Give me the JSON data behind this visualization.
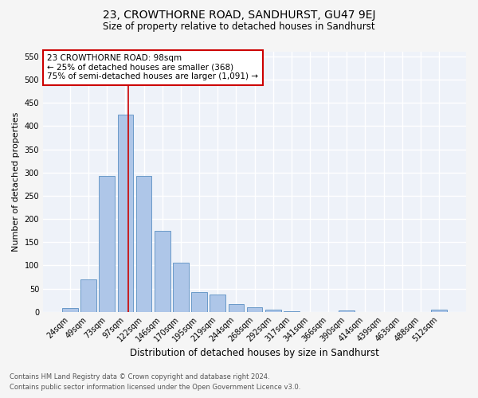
{
  "title": "23, CROWTHORNE ROAD, SANDHURST, GU47 9EJ",
  "subtitle": "Size of property relative to detached houses in Sandhurst",
  "xlabel": "Distribution of detached houses by size in Sandhurst",
  "ylabel": "Number of detached properties",
  "footnote1": "Contains HM Land Registry data © Crown copyright and database right 2024.",
  "footnote2": "Contains public sector information licensed under the Open Government Licence v3.0.",
  "bin_labels": [
    "24sqm",
    "49sqm",
    "73sqm",
    "97sqm",
    "122sqm",
    "146sqm",
    "170sqm",
    "195sqm",
    "219sqm",
    "244sqm",
    "268sqm",
    "292sqm",
    "317sqm",
    "341sqm",
    "366sqm",
    "390sqm",
    "414sqm",
    "439sqm",
    "463sqm",
    "488sqm",
    "512sqm"
  ],
  "bar_values": [
    8,
    70,
    293,
    425,
    293,
    174,
    105,
    43,
    38,
    17,
    10,
    5,
    2,
    0,
    0,
    3,
    0,
    0,
    0,
    0,
    4
  ],
  "bar_color": "#aec6e8",
  "bar_edgecolor": "#5a8fc2",
  "annotation_line1": "23 CROWTHORNE ROAD: 98sqm",
  "annotation_line2": "← 25% of detached houses are smaller (368)",
  "annotation_line3": "75% of semi-detached houses are larger (1,091) →",
  "annotation_box_color": "#ffffff",
  "annotation_box_edgecolor": "#cc0000",
  "vline_x": 3.15,
  "vline_color": "#cc0000",
  "ylim": [
    0,
    560
  ],
  "yticks": [
    0,
    50,
    100,
    150,
    200,
    250,
    300,
    350,
    400,
    450,
    500,
    550
  ],
  "background_color": "#eef2f9",
  "grid_color": "#ffffff",
  "fig_background": "#f5f5f5",
  "title_fontsize": 10,
  "subtitle_fontsize": 8.5,
  "axis_label_fontsize": 8,
  "tick_fontsize": 7,
  "annotation_fontsize": 7.5,
  "footnote_fontsize": 6
}
